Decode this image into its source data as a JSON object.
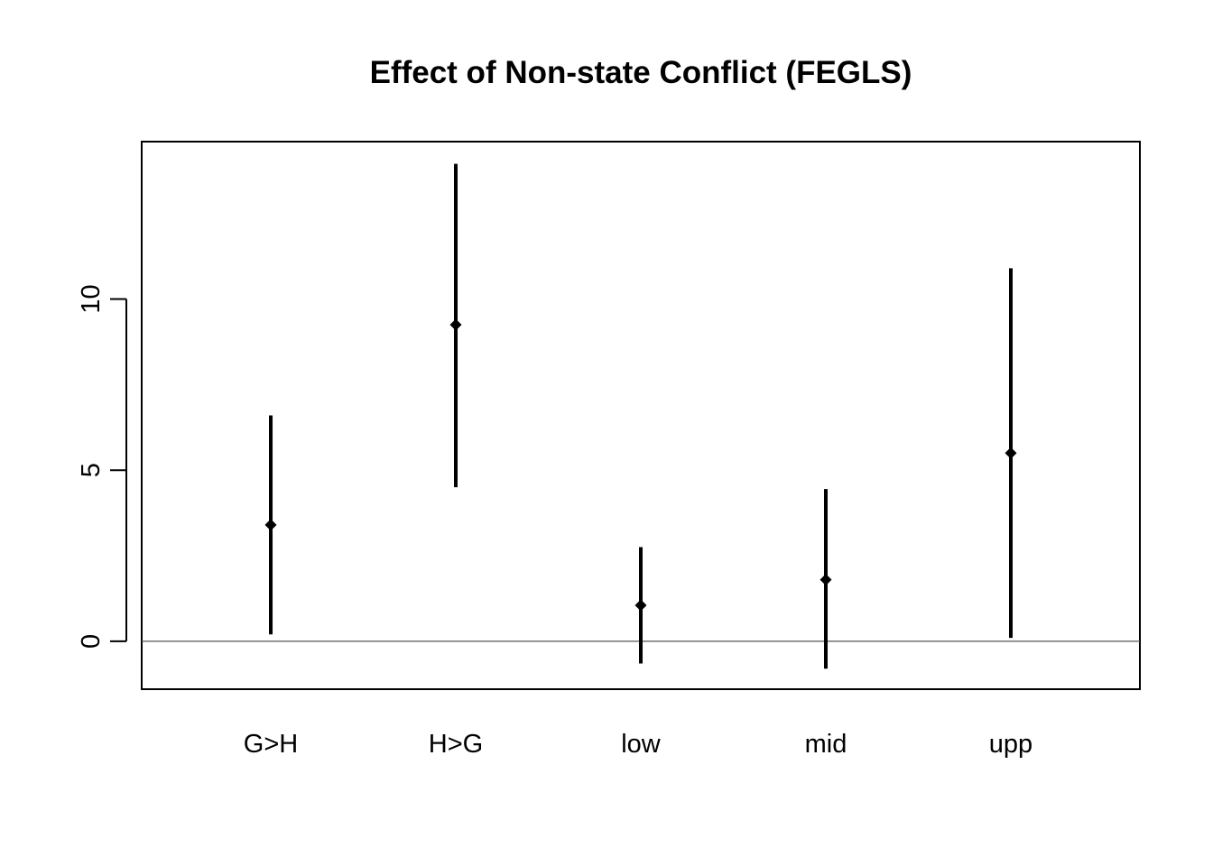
{
  "chart_data": {
    "type": "errorbar",
    "title": "Effect of Non-state Conflict (FEGLS)",
    "xlabel": "",
    "ylabel": "",
    "categories": [
      "G>H",
      "H>G",
      "low",
      "mid",
      "upp"
    ],
    "estimates": [
      3.4,
      9.25,
      1.05,
      1.8,
      5.5
    ],
    "lower": [
      0.2,
      4.5,
      -0.65,
      -0.8,
      0.1
    ],
    "upper": [
      6.6,
      13.95,
      2.75,
      4.45,
      10.9
    ],
    "yticks": [
      0,
      5,
      10
    ],
    "ytick_labels": [
      "0",
      "5",
      "10"
    ],
    "ylim": [
      -1.4,
      14.6
    ],
    "reference_line": 0,
    "grid": false,
    "colors": {
      "marks": "#000000",
      "reference_line": "#555555",
      "frame": "#000000"
    }
  }
}
